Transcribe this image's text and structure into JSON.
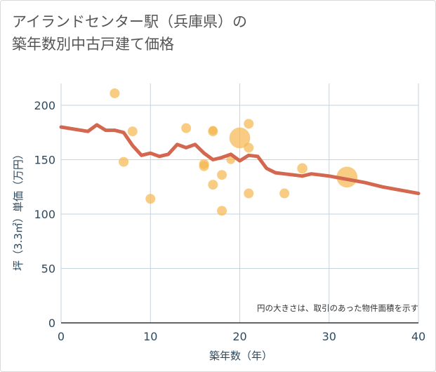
{
  "title_line1": "アイランドセンター駅（兵庫県）の",
  "title_line2": "築年数別中古戸建て価格",
  "colors": {
    "bubble": "#f5b74f",
    "line": "#d4674f",
    "grid": "#c5d3dc",
    "axis_text": "#2e4a5f"
  },
  "chart_data": {
    "type": "scatter",
    "title": "アイランドセンター駅（兵庫県）の築年数別中古戸建て価格",
    "xlabel": "築年数（年）",
    "ylabel": "坪（3.3㎡）単価（万円）",
    "xlim": [
      0,
      40
    ],
    "ylim": [
      0,
      220
    ],
    "xticks": [
      0,
      10,
      20,
      30,
      40
    ],
    "yticks": [
      0,
      50,
      100,
      150,
      200
    ],
    "grid": true,
    "note": "円の大きさは、取引のあった物件面積を示す",
    "bubbles": [
      {
        "x": 6,
        "y": 211,
        "size": 1
      },
      {
        "x": 7,
        "y": 148,
        "size": 1
      },
      {
        "x": 8,
        "y": 176,
        "size": 1
      },
      {
        "x": 10,
        "y": 114,
        "size": 1
      },
      {
        "x": 14,
        "y": 179,
        "size": 1
      },
      {
        "x": 16,
        "y": 144,
        "size": 1
      },
      {
        "x": 16,
        "y": 146,
        "size": 1
      },
      {
        "x": 17,
        "y": 176,
        "size": 1
      },
      {
        "x": 17,
        "y": 177,
        "size": 0.8
      },
      {
        "x": 17,
        "y": 127,
        "size": 1
      },
      {
        "x": 18,
        "y": 136,
        "size": 1
      },
      {
        "x": 18,
        "y": 103,
        "size": 1
      },
      {
        "x": 19,
        "y": 150,
        "size": 0.8
      },
      {
        "x": 20,
        "y": 170,
        "size": 4.5
      },
      {
        "x": 21,
        "y": 183,
        "size": 1
      },
      {
        "x": 21,
        "y": 161,
        "size": 1
      },
      {
        "x": 21,
        "y": 119,
        "size": 1
      },
      {
        "x": 25,
        "y": 119,
        "size": 1
      },
      {
        "x": 27,
        "y": 142,
        "size": 1.1
      },
      {
        "x": 32,
        "y": 134,
        "size": 4.5
      }
    ],
    "trend": {
      "x": [
        0,
        3,
        4,
        5,
        6,
        7,
        8,
        9,
        10,
        11,
        12,
        13,
        14,
        15,
        16,
        17,
        18,
        19,
        20,
        21,
        22,
        23,
        24,
        25,
        26,
        27,
        28,
        29,
        30,
        32,
        34,
        36,
        38,
        40
      ],
      "y": [
        180,
        176,
        182,
        177,
        177,
        175,
        163,
        154,
        156,
        153,
        155,
        164,
        161,
        164,
        156,
        150,
        152,
        155,
        149,
        154,
        153,
        142,
        138,
        137,
        136,
        135,
        137,
        136,
        135,
        132,
        129,
        125,
        122,
        119
      ]
    }
  }
}
